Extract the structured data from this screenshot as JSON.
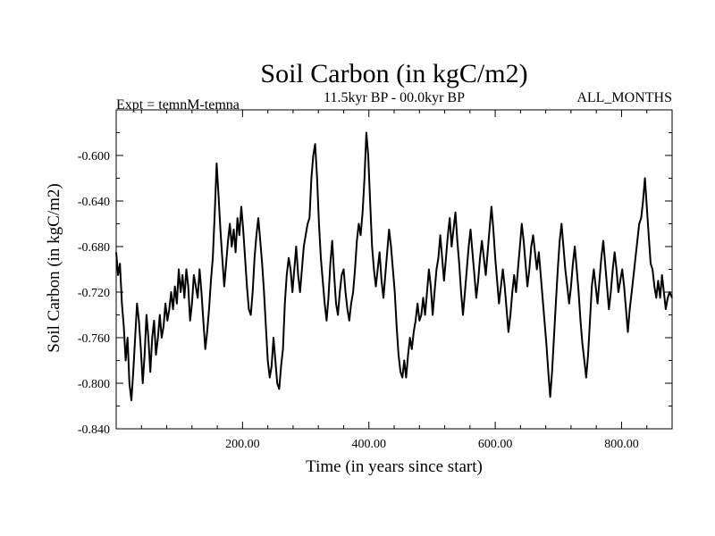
{
  "chart_data": {
    "type": "line",
    "title": "Soil Carbon (in kgC/m2)",
    "subtitle_left": "Expt = temnM-temna",
    "subtitle_center": "11.5kyr BP - 00.0kyr BP",
    "subtitle_right": "ALL_MONTHS",
    "xlabel": "Time (in years since start)",
    "ylabel": "Soil Carbon (in kgC/m2)",
    "xlim": [
      0,
      880
    ],
    "ylim": [
      -0.84,
      -0.56
    ],
    "xticks": [
      200,
      400,
      600,
      800
    ],
    "xtick_labels": [
      "200.00",
      "400.00",
      "600.00",
      "800.00"
    ],
    "yticks": [
      -0.84,
      -0.8,
      -0.76,
      -0.72,
      -0.68,
      -0.64,
      -0.6
    ],
    "ytick_labels": [
      "-0.840",
      "-0.800",
      "-0.760",
      "-0.720",
      "-0.680",
      "-0.640",
      "-0.600"
    ],
    "grid": false,
    "series": [
      {
        "name": "Soil Carbon",
        "color": "#000000",
        "points": [
          [
            0,
            -0.685
          ],
          [
            3,
            -0.705
          ],
          [
            6,
            -0.695
          ],
          [
            9,
            -0.73
          ],
          [
            12,
            -0.75
          ],
          [
            15,
            -0.78
          ],
          [
            18,
            -0.76
          ],
          [
            21,
            -0.8
          ],
          [
            24,
            -0.815
          ],
          [
            27,
            -0.79
          ],
          [
            30,
            -0.76
          ],
          [
            33,
            -0.73
          ],
          [
            36,
            -0.745
          ],
          [
            39,
            -0.77
          ],
          [
            42,
            -0.8
          ],
          [
            45,
            -0.775
          ],
          [
            48,
            -0.74
          ],
          [
            51,
            -0.76
          ],
          [
            54,
            -0.79
          ],
          [
            57,
            -0.76
          ],
          [
            60,
            -0.745
          ],
          [
            63,
            -0.775
          ],
          [
            66,
            -0.76
          ],
          [
            69,
            -0.74
          ],
          [
            72,
            -0.76
          ],
          [
            75,
            -0.75
          ],
          [
            78,
            -0.73
          ],
          [
            81,
            -0.745
          ],
          [
            84,
            -0.735
          ],
          [
            87,
            -0.72
          ],
          [
            90,
            -0.735
          ],
          [
            93,
            -0.715
          ],
          [
            96,
            -0.73
          ],
          [
            99,
            -0.7
          ],
          [
            102,
            -0.72
          ],
          [
            105,
            -0.705
          ],
          [
            108,
            -0.725
          ],
          [
            111,
            -0.7
          ],
          [
            114,
            -0.715
          ],
          [
            117,
            -0.745
          ],
          [
            120,
            -0.73
          ],
          [
            123,
            -0.705
          ],
          [
            126,
            -0.715
          ],
          [
            129,
            -0.725
          ],
          [
            132,
            -0.7
          ],
          [
            135,
            -0.72
          ],
          [
            138,
            -0.745
          ],
          [
            141,
            -0.77
          ],
          [
            144,
            -0.755
          ],
          [
            147,
            -0.735
          ],
          [
            150,
            -0.71
          ],
          [
            153,
            -0.69
          ],
          [
            156,
            -0.65
          ],
          [
            159,
            -0.607
          ],
          [
            162,
            -0.635
          ],
          [
            165,
            -0.665
          ],
          [
            168,
            -0.69
          ],
          [
            171,
            -0.715
          ],
          [
            174,
            -0.695
          ],
          [
            177,
            -0.675
          ],
          [
            180,
            -0.66
          ],
          [
            183,
            -0.68
          ],
          [
            186,
            -0.665
          ],
          [
            189,
            -0.685
          ],
          [
            192,
            -0.655
          ],
          [
            195,
            -0.67
          ],
          [
            198,
            -0.645
          ],
          [
            201,
            -0.665
          ],
          [
            204,
            -0.69
          ],
          [
            207,
            -0.715
          ],
          [
            210,
            -0.735
          ],
          [
            213,
            -0.74
          ],
          [
            216,
            -0.72
          ],
          [
            219,
            -0.69
          ],
          [
            222,
            -0.67
          ],
          [
            225,
            -0.655
          ],
          [
            228,
            -0.675
          ],
          [
            231,
            -0.695
          ],
          [
            234,
            -0.72
          ],
          [
            237,
            -0.75
          ],
          [
            240,
            -0.78
          ],
          [
            243,
            -0.795
          ],
          [
            246,
            -0.785
          ],
          [
            249,
            -0.76
          ],
          [
            252,
            -0.78
          ],
          [
            255,
            -0.8
          ],
          [
            258,
            -0.805
          ],
          [
            261,
            -0.785
          ],
          [
            264,
            -0.77
          ],
          [
            267,
            -0.73
          ],
          [
            270,
            -0.705
          ],
          [
            273,
            -0.69
          ],
          [
            276,
            -0.7
          ],
          [
            279,
            -0.72
          ],
          [
            282,
            -0.7
          ],
          [
            285,
            -0.68
          ],
          [
            288,
            -0.705
          ],
          [
            291,
            -0.72
          ],
          [
            294,
            -0.7
          ],
          [
            297,
            -0.68
          ],
          [
            300,
            -0.67
          ],
          [
            303,
            -0.66
          ],
          [
            306,
            -0.655
          ],
          [
            309,
            -0.62
          ],
          [
            312,
            -0.6
          ],
          [
            315,
            -0.59
          ],
          [
            318,
            -0.62
          ],
          [
            321,
            -0.66
          ],
          [
            324,
            -0.69
          ],
          [
            327,
            -0.71
          ],
          [
            330,
            -0.73
          ],
          [
            333,
            -0.745
          ],
          [
            336,
            -0.725
          ],
          [
            339,
            -0.695
          ],
          [
            342,
            -0.675
          ],
          [
            345,
            -0.705
          ],
          [
            348,
            -0.73
          ],
          [
            351,
            -0.74
          ],
          [
            354,
            -0.72
          ],
          [
            357,
            -0.705
          ],
          [
            360,
            -0.7
          ],
          [
            363,
            -0.72
          ],
          [
            366,
            -0.735
          ],
          [
            369,
            -0.745
          ],
          [
            372,
            -0.73
          ],
          [
            375,
            -0.72
          ],
          [
            378,
            -0.7
          ],
          [
            381,
            -0.675
          ],
          [
            384,
            -0.66
          ],
          [
            387,
            -0.67
          ],
          [
            390,
            -0.65
          ],
          [
            393,
            -0.62
          ],
          [
            396,
            -0.58
          ],
          [
            399,
            -0.6
          ],
          [
            402,
            -0.64
          ],
          [
            405,
            -0.68
          ],
          [
            408,
            -0.7
          ],
          [
            411,
            -0.715
          ],
          [
            414,
            -0.7
          ],
          [
            417,
            -0.685
          ],
          [
            420,
            -0.71
          ],
          [
            423,
            -0.725
          ],
          [
            426,
            -0.705
          ],
          [
            429,
            -0.685
          ],
          [
            432,
            -0.665
          ],
          [
            435,
            -0.68
          ],
          [
            438,
            -0.7
          ],
          [
            441,
            -0.72
          ],
          [
            444,
            -0.75
          ],
          [
            447,
            -0.775
          ],
          [
            450,
            -0.79
          ],
          [
            453,
            -0.795
          ],
          [
            456,
            -0.78
          ],
          [
            459,
            -0.795
          ],
          [
            462,
            -0.775
          ],
          [
            465,
            -0.76
          ],
          [
            468,
            -0.77
          ],
          [
            471,
            -0.755
          ],
          [
            474,
            -0.745
          ],
          [
            477,
            -0.73
          ],
          [
            480,
            -0.745
          ],
          [
            483,
            -0.74
          ],
          [
            486,
            -0.725
          ],
          [
            489,
            -0.74
          ],
          [
            492,
            -0.72
          ],
          [
            495,
            -0.7
          ],
          [
            498,
            -0.715
          ],
          [
            501,
            -0.74
          ],
          [
            504,
            -0.72
          ],
          [
            507,
            -0.7
          ],
          [
            510,
            -0.69
          ],
          [
            513,
            -0.67
          ],
          [
            516,
            -0.69
          ],
          [
            519,
            -0.71
          ],
          [
            522,
            -0.69
          ],
          [
            525,
            -0.67
          ],
          [
            528,
            -0.655
          ],
          [
            531,
            -0.68
          ],
          [
            534,
            -0.665
          ],
          [
            537,
            -0.65
          ],
          [
            540,
            -0.675
          ],
          [
            543,
            -0.695
          ],
          [
            546,
            -0.72
          ],
          [
            549,
            -0.74
          ],
          [
            552,
            -0.72
          ],
          [
            555,
            -0.7
          ],
          [
            558,
            -0.68
          ],
          [
            561,
            -0.665
          ],
          [
            564,
            -0.685
          ],
          [
            567,
            -0.705
          ],
          [
            570,
            -0.725
          ],
          [
            573,
            -0.71
          ],
          [
            576,
            -0.69
          ],
          [
            579,
            -0.675
          ],
          [
            582,
            -0.69
          ],
          [
            585,
            -0.705
          ],
          [
            588,
            -0.685
          ],
          [
            591,
            -0.665
          ],
          [
            594,
            -0.645
          ],
          [
            597,
            -0.665
          ],
          [
            600,
            -0.69
          ],
          [
            603,
            -0.71
          ],
          [
            606,
            -0.73
          ],
          [
            609,
            -0.715
          ],
          [
            612,
            -0.7
          ],
          [
            615,
            -0.715
          ],
          [
            618,
            -0.735
          ],
          [
            621,
            -0.755
          ],
          [
            624,
            -0.74
          ],
          [
            627,
            -0.72
          ],
          [
            630,
            -0.705
          ],
          [
            633,
            -0.72
          ],
          [
            636,
            -0.7
          ],
          [
            639,
            -0.68
          ],
          [
            642,
            -0.66
          ],
          [
            645,
            -0.675
          ],
          [
            648,
            -0.695
          ],
          [
            651,
            -0.715
          ],
          [
            654,
            -0.7
          ],
          [
            657,
            -0.68
          ],
          [
            660,
            -0.67
          ],
          [
            663,
            -0.685
          ],
          [
            666,
            -0.7
          ],
          [
            669,
            -0.685
          ],
          [
            672,
            -0.705
          ],
          [
            675,
            -0.725
          ],
          [
            678,
            -0.745
          ],
          [
            681,
            -0.765
          ],
          [
            684,
            -0.79
          ],
          [
            687,
            -0.812
          ],
          [
            690,
            -0.79
          ],
          [
            693,
            -0.76
          ],
          [
            696,
            -0.73
          ],
          [
            699,
            -0.7
          ],
          [
            702,
            -0.675
          ],
          [
            705,
            -0.66
          ],
          [
            708,
            -0.68
          ],
          [
            711,
            -0.7
          ],
          [
            714,
            -0.715
          ],
          [
            717,
            -0.73
          ],
          [
            720,
            -0.715
          ],
          [
            723,
            -0.695
          ],
          [
            726,
            -0.68
          ],
          [
            729,
            -0.7
          ],
          [
            732,
            -0.72
          ],
          [
            735,
            -0.745
          ],
          [
            738,
            -0.765
          ],
          [
            741,
            -0.78
          ],
          [
            744,
            -0.795
          ],
          [
            747,
            -0.775
          ],
          [
            750,
            -0.745
          ],
          [
            753,
            -0.715
          ],
          [
            756,
            -0.7
          ],
          [
            759,
            -0.715
          ],
          [
            762,
            -0.73
          ],
          [
            765,
            -0.71
          ],
          [
            768,
            -0.69
          ],
          [
            771,
            -0.675
          ],
          [
            774,
            -0.695
          ],
          [
            777,
            -0.715
          ],
          [
            780,
            -0.735
          ],
          [
            783,
            -0.72
          ],
          [
            786,
            -0.7
          ],
          [
            789,
            -0.685
          ],
          [
            792,
            -0.7
          ],
          [
            795,
            -0.72
          ],
          [
            798,
            -0.71
          ],
          [
            801,
            -0.7
          ],
          [
            804,
            -0.715
          ],
          [
            807,
            -0.735
          ],
          [
            810,
            -0.755
          ],
          [
            813,
            -0.735
          ],
          [
            816,
            -0.72
          ],
          [
            819,
            -0.705
          ],
          [
            822,
            -0.69
          ],
          [
            825,
            -0.675
          ],
          [
            828,
            -0.66
          ],
          [
            831,
            -0.655
          ],
          [
            834,
            -0.64
          ],
          [
            837,
            -0.62
          ],
          [
            840,
            -0.645
          ],
          [
            843,
            -0.67
          ],
          [
            846,
            -0.695
          ],
          [
            849,
            -0.7
          ],
          [
            852,
            -0.715
          ],
          [
            855,
            -0.725
          ],
          [
            858,
            -0.71
          ],
          [
            861,
            -0.725
          ],
          [
            864,
            -0.705
          ],
          [
            867,
            -0.72
          ],
          [
            870,
            -0.735
          ],
          [
            873,
            -0.725
          ],
          [
            876,
            -0.72
          ],
          [
            880,
            -0.725
          ]
        ]
      }
    ]
  }
}
